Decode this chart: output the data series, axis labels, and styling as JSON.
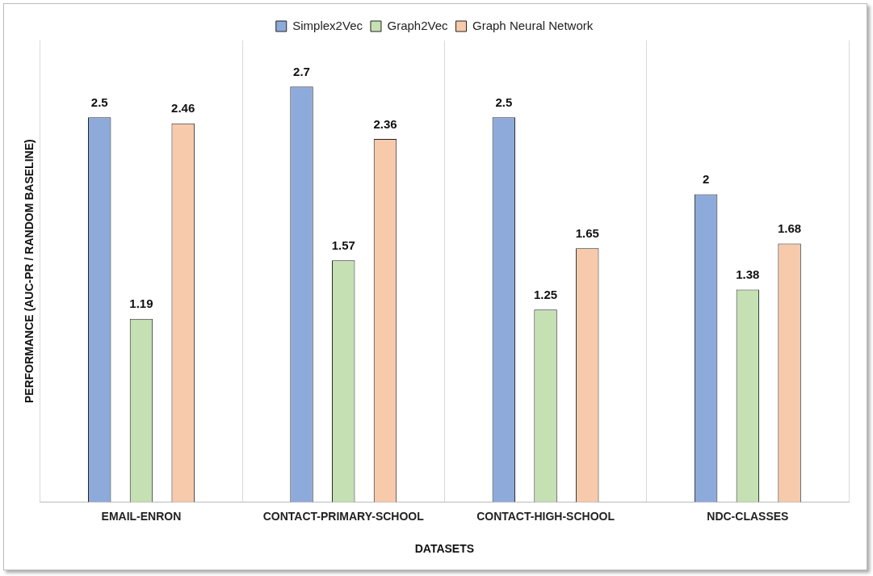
{
  "chart_data": {
    "type": "bar",
    "xlabel": "DATASETS",
    "ylabel": "PERFORMANCE (AUC-PR / RANDOM BASELINE)",
    "categories": [
      "EMAIL-ENRON",
      "CONTACT-PRIMARY-SCHOOL",
      "CONTACT-HIGH-SCHOOL",
      "NDC-CLASSES"
    ],
    "series": [
      {
        "name": "Simplex2Vec",
        "color": "#8eaadb",
        "values": [
          2.5,
          2.7,
          2.5,
          2
        ]
      },
      {
        "name": "Graph2Vec",
        "color": "#c5e0b3",
        "values": [
          1.19,
          1.57,
          1.25,
          1.38
        ]
      },
      {
        "name": "Graph Neural Network",
        "color": "#f7caac",
        "values": [
          2.46,
          2.36,
          1.65,
          1.68
        ]
      }
    ],
    "ylim": [
      0,
      3
    ],
    "tick_labels": "x",
    "grid": "x",
    "legend": "top",
    "data_labels": true
  }
}
